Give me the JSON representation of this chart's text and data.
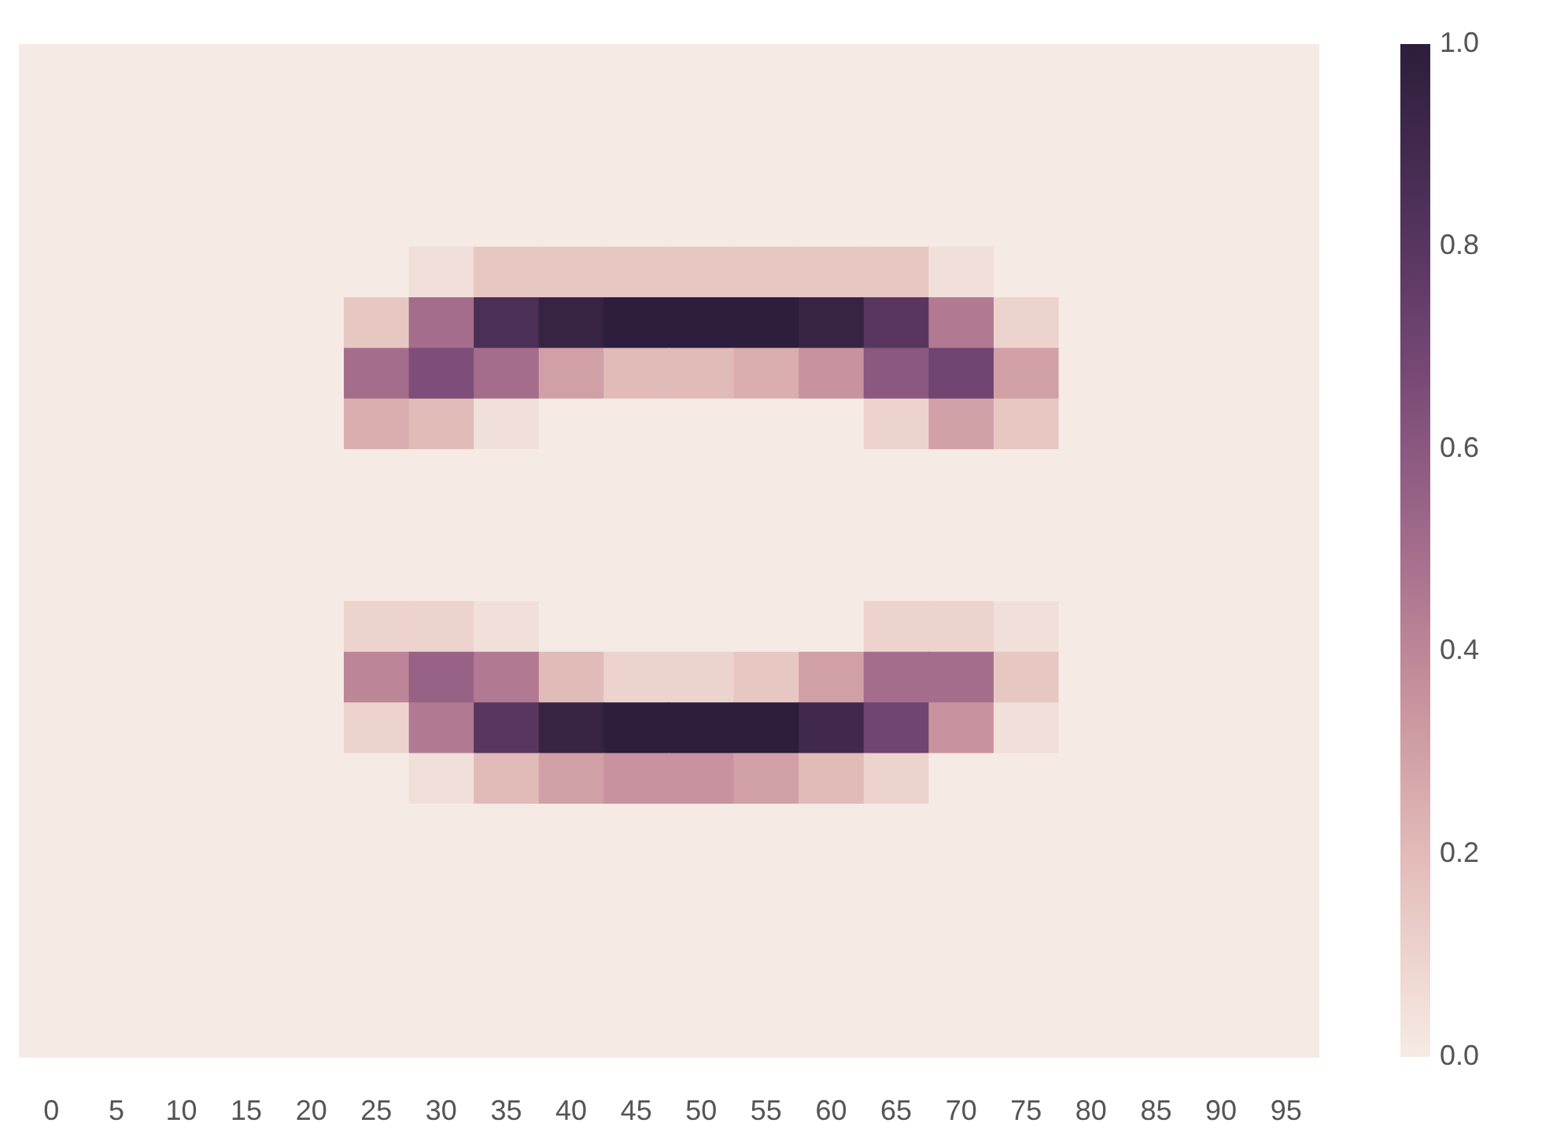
{
  "chart_data": {
    "type": "heatmap",
    "categories": [
      "0",
      "5",
      "10",
      "15",
      "20",
      "25",
      "30",
      "35",
      "40",
      "45",
      "50",
      "55",
      "60",
      "65",
      "70",
      "75",
      "80",
      "85",
      "90",
      "95"
    ],
    "y_categories": [
      null,
      null,
      null,
      null,
      null,
      null,
      null,
      null,
      null,
      null,
      null,
      null,
      null,
      null,
      null,
      null,
      null,
      null,
      null,
      null
    ],
    "cells": [
      [
        0,
        0,
        0,
        0,
        0,
        0,
        0,
        0,
        0,
        0,
        0,
        0,
        0,
        0,
        0,
        0,
        0,
        0,
        0,
        0
      ],
      [
        0,
        0,
        0,
        0,
        0,
        0,
        0,
        0,
        0,
        0,
        0,
        0,
        0,
        0,
        0,
        0,
        0,
        0,
        0,
        0
      ],
      [
        0,
        0,
        0,
        0,
        0,
        0,
        0,
        0,
        0,
        0,
        0,
        0,
        0,
        0,
        0,
        0,
        0,
        0,
        0,
        0
      ],
      [
        0,
        0,
        0,
        0,
        0,
        0,
        0,
        0,
        0,
        0,
        0,
        0,
        0,
        0,
        0,
        0,
        0,
        0,
        0,
        0
      ],
      [
        0,
        0,
        0,
        0,
        0,
        0,
        0.05,
        0.15,
        0.15,
        0.15,
        0.15,
        0.15,
        0.15,
        0.15,
        0.05,
        0,
        0,
        0,
        0,
        0
      ],
      [
        0,
        0,
        0,
        0,
        0,
        0.15,
        0.5,
        0.85,
        0.95,
        1,
        1,
        1,
        0.95,
        0.8,
        0.45,
        0.1,
        0,
        0,
        0,
        0
      ],
      [
        0,
        0,
        0,
        0,
        0,
        0.5,
        0.65,
        0.5,
        0.3,
        0.2,
        0.2,
        0.25,
        0.35,
        0.6,
        0.7,
        0.3,
        0,
        0,
        0,
        0
      ],
      [
        0,
        0,
        0,
        0,
        0,
        0.25,
        0.2,
        0.05,
        0,
        0,
        0,
        0,
        0,
        0.1,
        0.3,
        0.15,
        0,
        0,
        0,
        0
      ],
      [
        0,
        0,
        0,
        0,
        0,
        0,
        0,
        0,
        0,
        0,
        0,
        0,
        0,
        0,
        0,
        0,
        0,
        0,
        0,
        0
      ],
      [
        0,
        0,
        0,
        0,
        0,
        0,
        0,
        0,
        0,
        0,
        0,
        0,
        0,
        0,
        0,
        0,
        0,
        0,
        0,
        0
      ],
      [
        0,
        0,
        0,
        0,
        0,
        0,
        0,
        0,
        0,
        0,
        0,
        0,
        0,
        0,
        0,
        0,
        0,
        0,
        0,
        0
      ],
      [
        0,
        0,
        0,
        0,
        0,
        0.1,
        0.1,
        0.05,
        0,
        0,
        0,
        0,
        0,
        0.1,
        0.1,
        0.05,
        0,
        0,
        0,
        0
      ],
      [
        0,
        0,
        0,
        0,
        0,
        0.4,
        0.55,
        0.45,
        0.2,
        0.1,
        0.1,
        0.15,
        0.3,
        0.5,
        0.5,
        0.15,
        0,
        0,
        0,
        0
      ],
      [
        0,
        0,
        0,
        0,
        0,
        0.1,
        0.45,
        0.8,
        0.95,
        1,
        1,
        1,
        0.9,
        0.7,
        0.35,
        0.05,
        0,
        0,
        0,
        0
      ],
      [
        0,
        0,
        0,
        0,
        0,
        0,
        0.05,
        0.2,
        0.3,
        0.35,
        0.35,
        0.3,
        0.2,
        0.1,
        0,
        0,
        0,
        0,
        0,
        0
      ],
      [
        0,
        0,
        0,
        0,
        0,
        0,
        0,
        0,
        0,
        0,
        0,
        0,
        0,
        0,
        0,
        0,
        0,
        0,
        0,
        0
      ],
      [
        0,
        0,
        0,
        0,
        0,
        0,
        0,
        0,
        0,
        0,
        0,
        0,
        0,
        0,
        0,
        0,
        0,
        0,
        0,
        0
      ],
      [
        0,
        0,
        0,
        0,
        0,
        0,
        0,
        0,
        0,
        0,
        0,
        0,
        0,
        0,
        0,
        0,
        0,
        0,
        0,
        0
      ],
      [
        0,
        0,
        0,
        0,
        0,
        0,
        0,
        0,
        0,
        0,
        0,
        0,
        0,
        0,
        0,
        0,
        0,
        0,
        0,
        0
      ],
      [
        0,
        0,
        0,
        0,
        0,
        0,
        0,
        0,
        0,
        0,
        0,
        0,
        0,
        0,
        0,
        0,
        0,
        0,
        0,
        0
      ]
    ],
    "clim": [
      0,
      1
    ],
    "cticks": [
      {
        "value": 0,
        "label": "0.0"
      },
      {
        "value": 0.2,
        "label": "0.2"
      },
      {
        "value": 0.4,
        "label": "0.4"
      },
      {
        "value": 0.6,
        "label": "0.6"
      },
      {
        "value": 0.8,
        "label": "0.8"
      },
      {
        "value": 1,
        "label": "1.0"
      }
    ]
  }
}
